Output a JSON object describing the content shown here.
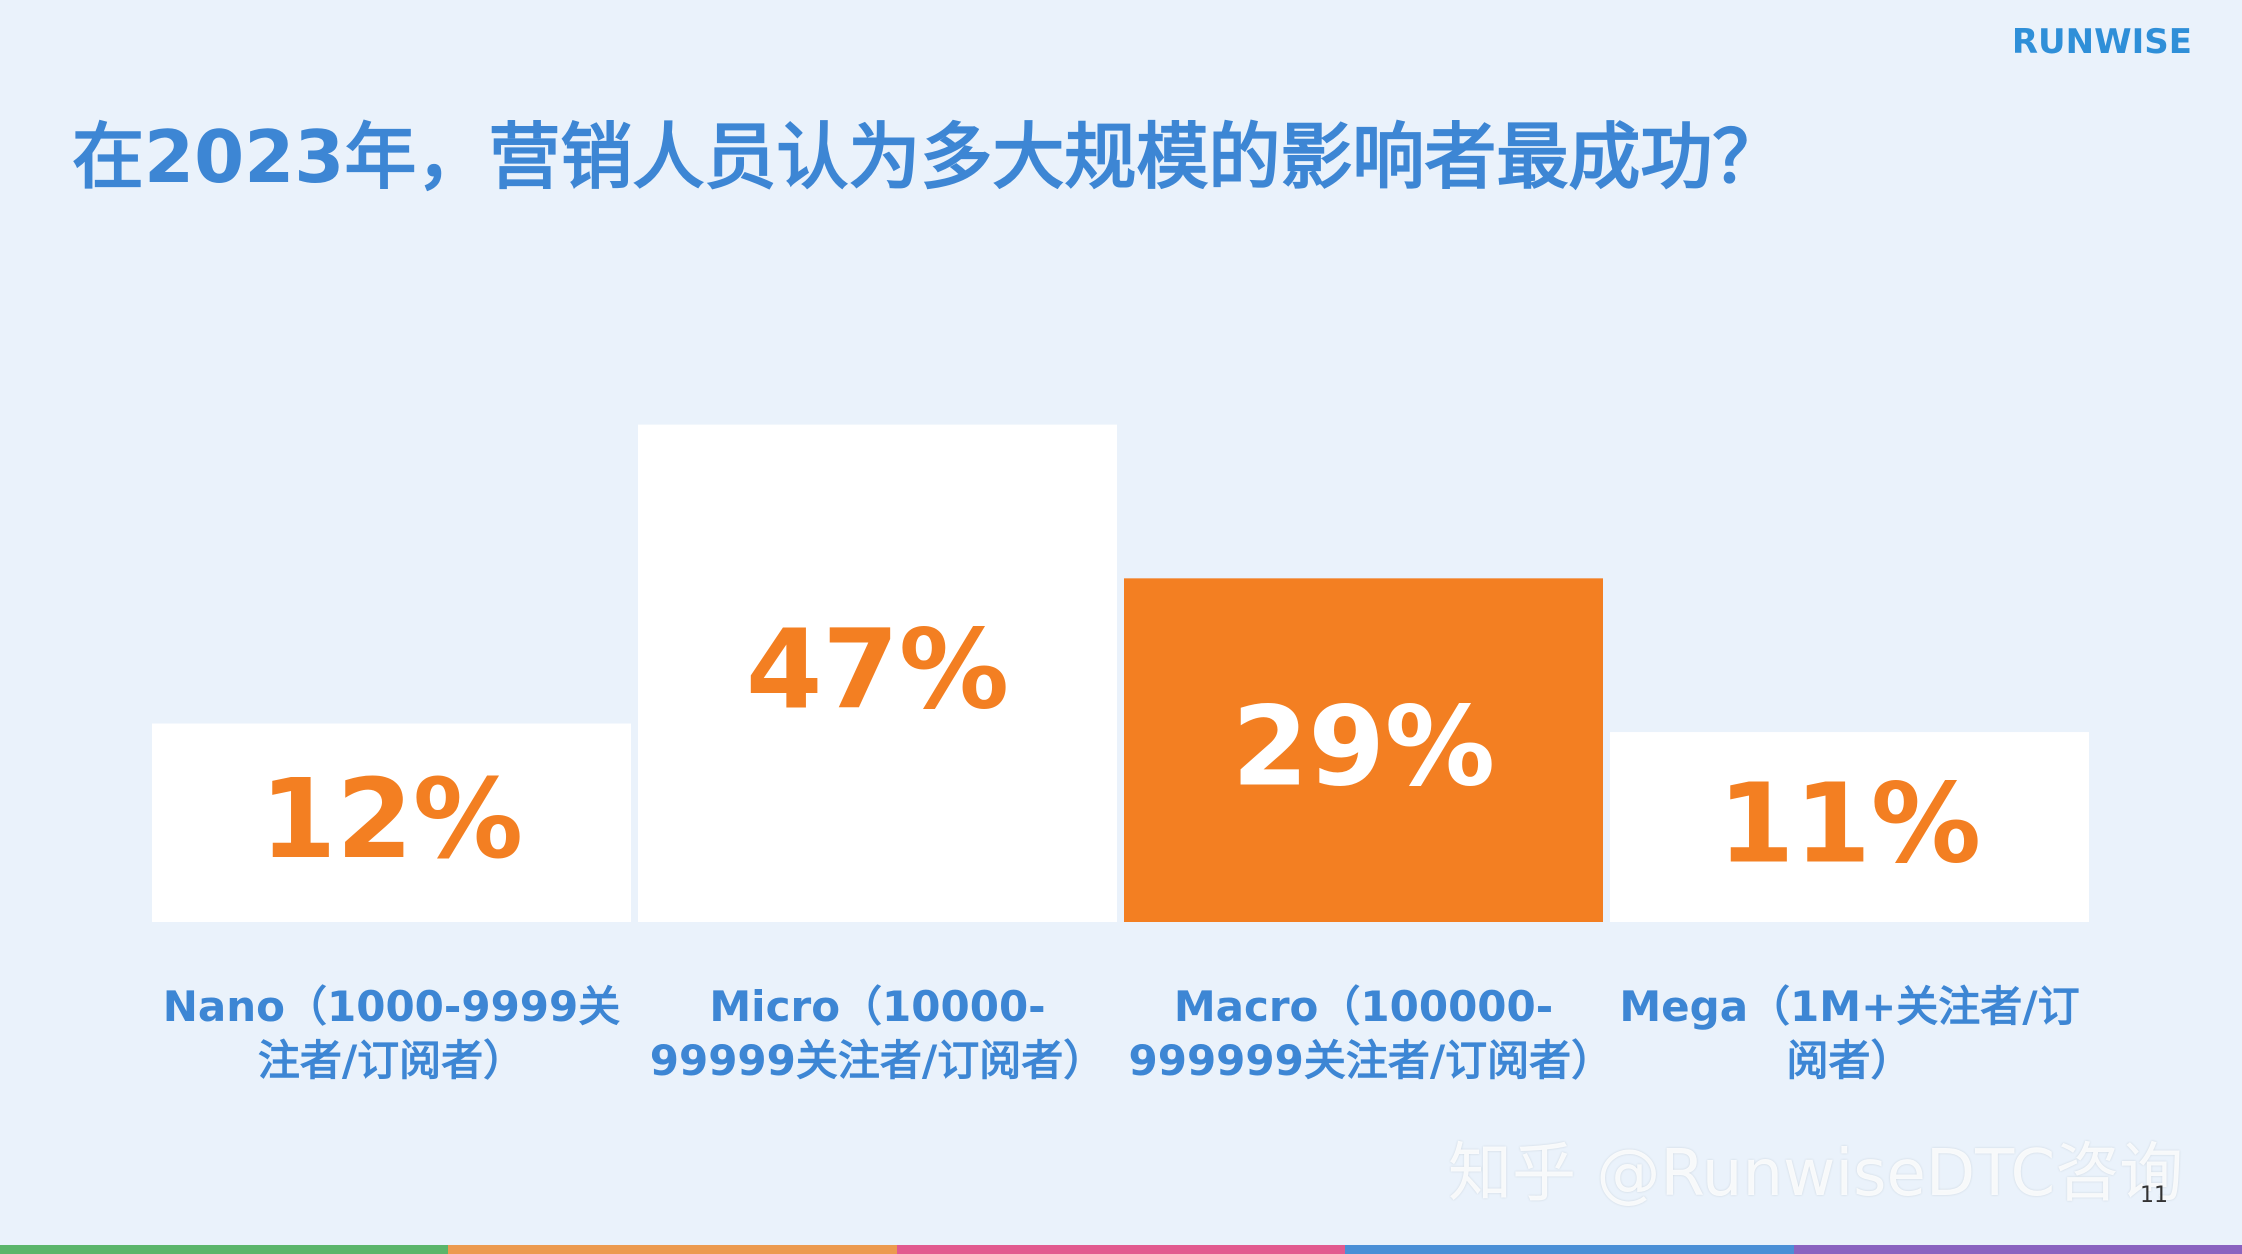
{
  "chart_data": {
    "type": "bar",
    "title": "在2023年，营销人员认为多大规模的影响者最成功？",
    "categories": [
      "Nano（1000-9999关注者/订阅者）",
      "Micro（10000-99999关注者/订阅者）",
      "Macro（100000-999999关注者/订阅者）",
      "Mega（1M+关注者/订阅者）"
    ],
    "values": [
      12,
      47,
      29,
      11
    ],
    "value_labels": [
      "12%",
      "47%",
      "29%",
      "11%"
    ],
    "colors": [
      "#ffffff",
      "#ffffff",
      "#f37f22",
      "#ffffff"
    ],
    "value_label_colors": [
      "#f37f22",
      "#f37f22",
      "#ffffff",
      "#f37f22"
    ]
  },
  "logo": "RUNWISE",
  "watermark": "知乎 @RunwiseDTC咨询",
  "page_number": "11"
}
